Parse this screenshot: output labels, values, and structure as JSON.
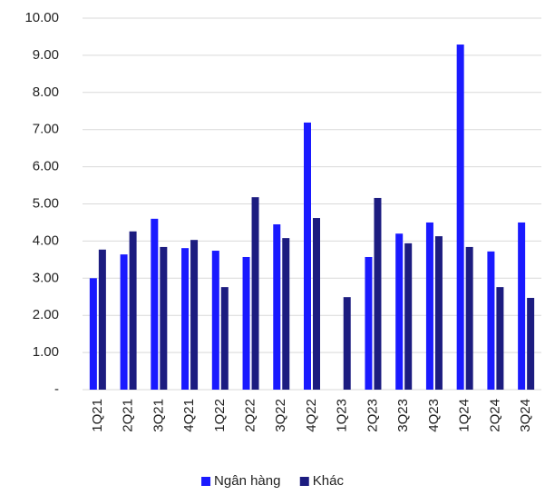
{
  "chart_data": {
    "type": "bar",
    "categories": [
      "1Q21",
      "2Q21",
      "3Q21",
      "4Q21",
      "1Q22",
      "2Q22",
      "3Q22",
      "4Q22",
      "1Q23",
      "2Q23",
      "3Q23",
      "4Q23",
      "1Q24",
      "2Q24",
      "3Q24"
    ],
    "series": [
      {
        "name": "Ngân hàng",
        "color": "#1a1aff",
        "values": [
          3.0,
          3.64,
          4.6,
          3.81,
          3.74,
          3.57,
          4.45,
          7.19,
          null,
          3.57,
          4.2,
          4.5,
          9.29,
          3.72,
          4.5
        ]
      },
      {
        "name": "Khác",
        "color": "#1c1c80",
        "values": [
          3.77,
          4.26,
          3.84,
          4.03,
          2.76,
          5.18,
          4.08,
          4.62,
          2.49,
          5.16,
          3.94,
          4.13,
          3.84,
          2.76,
          2.47
        ]
      }
    ],
    "ylim": [
      0,
      10
    ],
    "yticks": [
      {
        "value": 0,
        "label": "-"
      },
      {
        "value": 1,
        "label": "1.00"
      },
      {
        "value": 2,
        "label": "2.00"
      },
      {
        "value": 3,
        "label": "3.00"
      },
      {
        "value": 4,
        "label": "4.00"
      },
      {
        "value": 5,
        "label": "5.00"
      },
      {
        "value": 6,
        "label": "6.00"
      },
      {
        "value": 7,
        "label": "7.00"
      },
      {
        "value": 8,
        "label": "8.00"
      },
      {
        "value": 9,
        "label": "9.00"
      },
      {
        "value": 10,
        "label": "10.00"
      }
    ],
    "grid": true,
    "legend": "bottom"
  }
}
